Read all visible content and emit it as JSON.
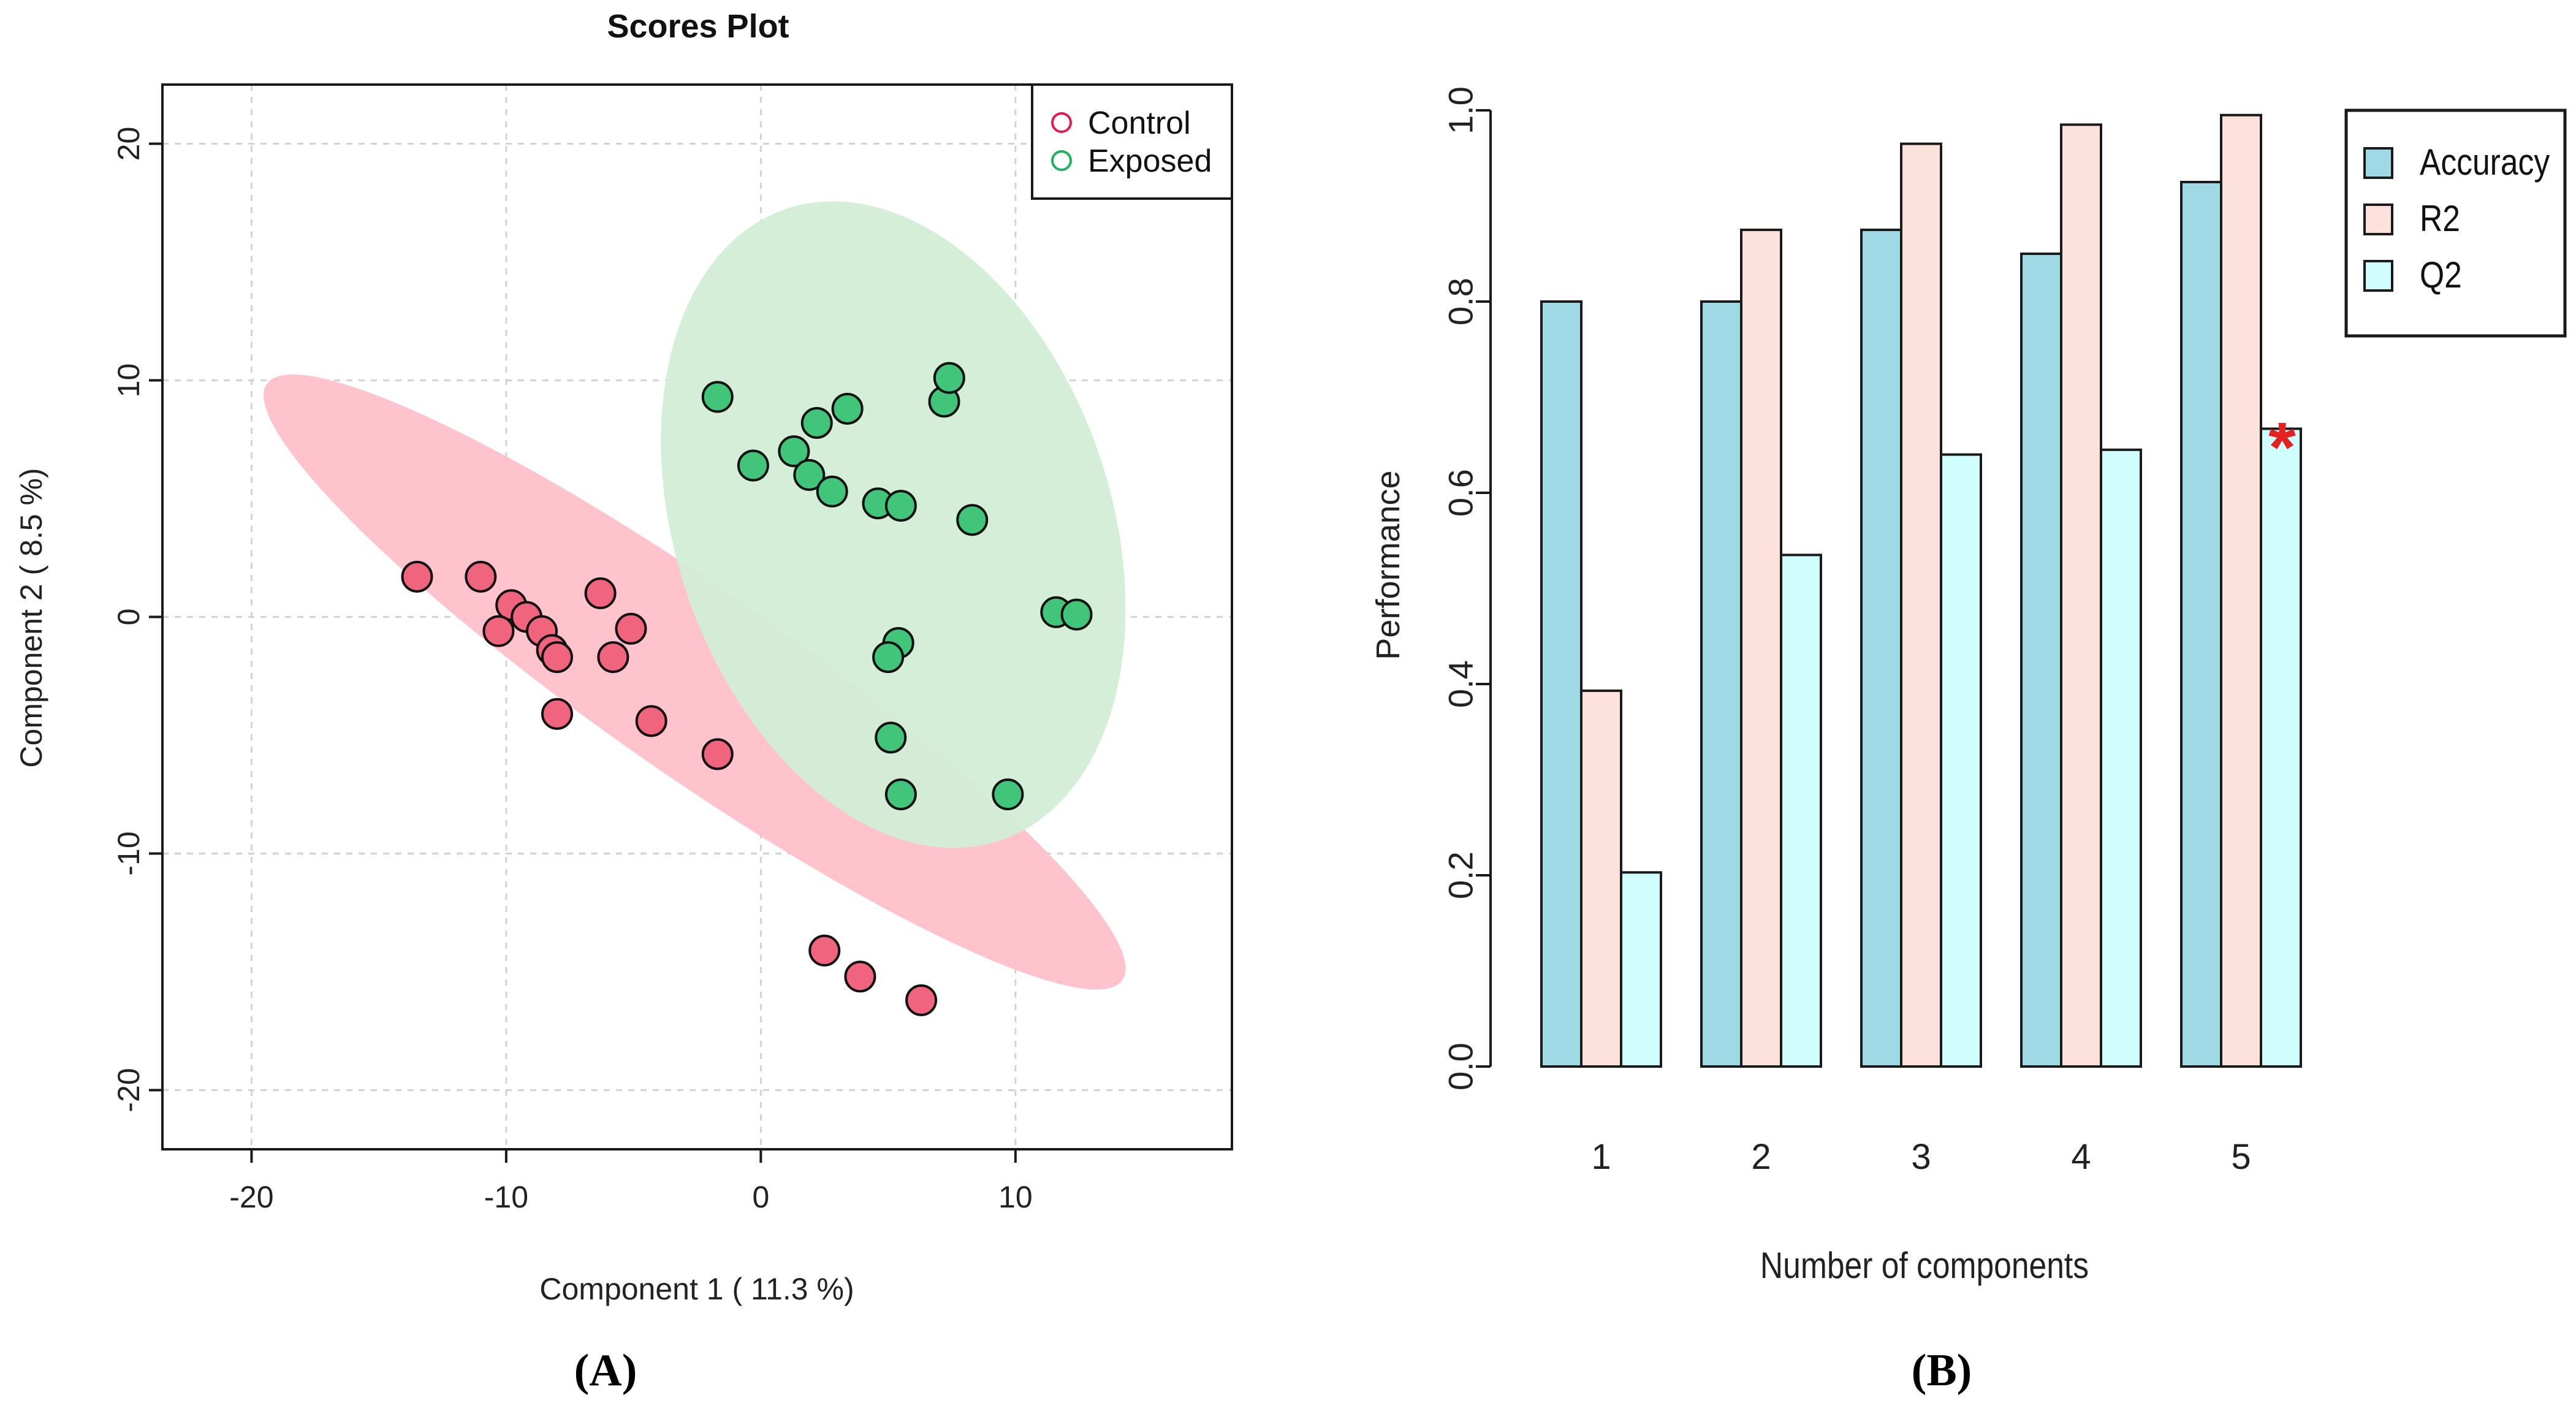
{
  "chart_data": [
    {
      "type": "scatter",
      "title": "Scores Plot",
      "xlabel": "Component 1 ( 11.3 %)",
      "ylabel": "Component 2 ( 8.5 %)",
      "xlim": [
        -23.5,
        18.5
      ],
      "ylim": [
        -22.5,
        22.5
      ],
      "x_ticks": [
        -20,
        -10,
        0,
        10
      ],
      "y_ticks": [
        -20,
        -10,
        0,
        10,
        20
      ],
      "x_tick_labels": [
        "-20",
        "-10",
        "0",
        "10"
      ],
      "y_tick_labels": [
        "-20",
        "-10",
        "0",
        "10",
        "20"
      ],
      "grid": true,
      "legend_position": "top-right",
      "panel_label": "(A)",
      "series": [
        {
          "name": "Control",
          "color": "#f0647e",
          "ellipse_color": "#ffc0cb",
          "legend_color": "#e8194f",
          "points": [
            [
              -13.5,
              1.7
            ],
            [
              -11.0,
              1.7
            ],
            [
              -9.8,
              0.5
            ],
            [
              -9.2,
              0.0
            ],
            [
              -10.3,
              -0.6
            ],
            [
              -8.6,
              -0.6
            ],
            [
              -8.2,
              -1.4
            ],
            [
              -8.0,
              -1.7
            ],
            [
              -6.3,
              1.0
            ],
            [
              -5.8,
              -1.7
            ],
            [
              -5.1,
              -0.5
            ],
            [
              -8.0,
              -4.1
            ],
            [
              -4.3,
              -4.4
            ],
            [
              -1.7,
              -5.8
            ],
            [
              2.5,
              -14.1
            ],
            [
              3.9,
              -15.2
            ],
            [
              6.3,
              -16.2
            ]
          ],
          "ellipse": {
            "cx": -2.6,
            "cy": -2.75,
            "rx": 21.0,
            "ry": 3.8,
            "angle_deg": -37
          }
        },
        {
          "name": "Exposed",
          "color": "#40c57a",
          "ellipse_color": "#d2edd6",
          "legend_color": "#1ab35a",
          "points": [
            [
              -1.7,
              9.3
            ],
            [
              -0.3,
              6.4
            ],
            [
              1.3,
              7.0
            ],
            [
              2.2,
              8.2
            ],
            [
              3.4,
              8.8
            ],
            [
              1.9,
              6.0
            ],
            [
              2.8,
              5.3
            ],
            [
              4.6,
              4.8
            ],
            [
              5.5,
              4.7
            ],
            [
              7.2,
              9.1
            ],
            [
              7.4,
              10.1
            ],
            [
              8.3,
              4.1
            ],
            [
              11.6,
              0.2
            ],
            [
              12.4,
              0.1
            ],
            [
              5.4,
              -1.1
            ],
            [
              5.0,
              -1.7
            ],
            [
              5.1,
              -5.1
            ],
            [
              5.5,
              -7.5
            ],
            [
              9.7,
              -7.5
            ]
          ],
          "ellipse": {
            "cx": 5.2,
            "cy": 3.9,
            "rx": 8.6,
            "ry": 14.0,
            "angle_deg": 16
          }
        }
      ]
    },
    {
      "type": "bar",
      "xlabel": "Number of components",
      "ylabel": "Performance",
      "categories": [
        "1",
        "2",
        "3",
        "4",
        "5"
      ],
      "ylim": [
        0,
        1.0
      ],
      "y_ticks": [
        0.0,
        0.2,
        0.4,
        0.6,
        0.8,
        1.0
      ],
      "y_tick_labels": [
        "0.0",
        "0.2",
        "0.4",
        "0.6",
        "0.8",
        "1.0"
      ],
      "grid": false,
      "legend_position": "top-right",
      "panel_label": "(B)",
      "series": [
        {
          "name": "Accuracy",
          "color": "#9ed9e5",
          "values": [
            0.8,
            0.8,
            0.875,
            0.85,
            0.925
          ]
        },
        {
          "name": "R2",
          "color": "#fde2dc",
          "values": [
            0.393,
            0.875,
            0.965,
            0.985,
            0.995
          ]
        },
        {
          "name": "Q2",
          "color": "#d0fdfe",
          "values": [
            0.203,
            0.535,
            0.64,
            0.645,
            0.667
          ]
        }
      ],
      "annotation": {
        "text": "*",
        "category": "5",
        "series": "Q2",
        "color": "#e52222"
      }
    }
  ]
}
